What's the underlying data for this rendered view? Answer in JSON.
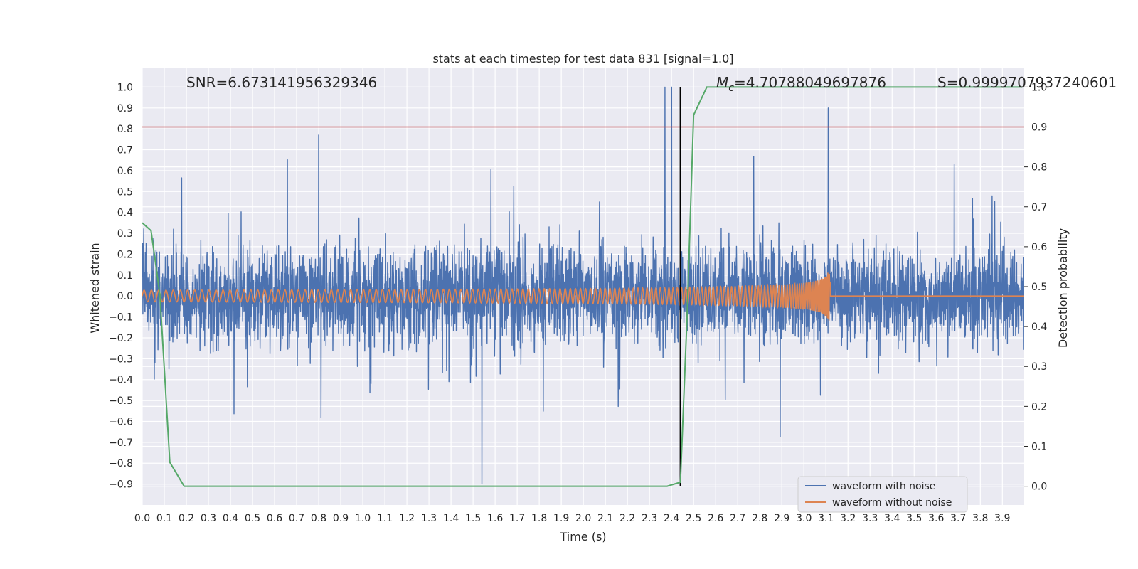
{
  "chart_data": {
    "type": "line",
    "title": "stats at each timestep for test data 831 [signal=1.0]",
    "xlabel": "Time (s)",
    "ylabel": "Whitened strain",
    "y2label": "Detection probability",
    "xlim": [
      0.0,
      3.999
    ],
    "ylim": [
      -1.0,
      1.09
    ],
    "y2lim": [
      -0.047,
      1.047
    ],
    "x_ticks": [
      "0.0",
      "0.1",
      "0.2",
      "0.3",
      "0.4",
      "0.5",
      "0.6",
      "0.7",
      "0.8",
      "0.9",
      "1.0",
      "1.1",
      "1.2",
      "1.3",
      "1.4",
      "1.5",
      "1.6",
      "1.7",
      "1.8",
      "1.9",
      "2.0",
      "2.1",
      "2.2",
      "2.3",
      "2.4",
      "2.5",
      "2.6",
      "2.7",
      "2.8",
      "2.9",
      "3.0",
      "3.1",
      "3.2",
      "3.3",
      "3.4",
      "3.5",
      "3.6",
      "3.7",
      "3.8",
      "3.9"
    ],
    "y_ticks": [
      "1.0",
      "0.9",
      "0.8",
      "0.7",
      "0.6",
      "0.5",
      "0.4",
      "0.3",
      "0.2",
      "0.1",
      "0.0",
      "−0.1",
      "−0.2",
      "−0.3",
      "−0.4",
      "−0.5",
      "−0.6",
      "−0.7",
      "−0.8",
      "−0.9"
    ],
    "y2_ticks": [
      "1.0",
      "0.9",
      "0.8",
      "0.7",
      "0.6",
      "0.5",
      "0.4",
      "0.3",
      "0.2",
      "0.1",
      "0.0"
    ],
    "grid": true,
    "legend_position": "lower-right",
    "annotations": {
      "snr": "SNR=6.673141956329346",
      "mc_symbol": "M",
      "mc_sub": "c",
      "mc_value": "=4.70788049697876",
      "s": "S=0.9999707937240601"
    },
    "threshold": {
      "axis": "y2",
      "value": 0.9,
      "color": "#c44e52"
    },
    "event_marker": {
      "x": 2.44,
      "color": "#000000"
    },
    "noise_seed": 831,
    "series": [
      {
        "name": "waveform with noise",
        "color": "#4c72b0",
        "axis": "y",
        "description": "whitened strain with noise, dense oscillation roughly between -0.9 and 1.0",
        "notable_peaks": [
          {
            "x": 0.8,
            "y": 0.77
          },
          {
            "x": 1.54,
            "y": -0.9
          },
          {
            "x": 2.37,
            "y": 1.0
          },
          {
            "x": 2.4,
            "y": 1.0
          },
          {
            "x": 3.11,
            "y": 0.9
          }
        ]
      },
      {
        "name": "waveform without noise",
        "color": "#dd8452",
        "axis": "y",
        "chirp_end_time": 3.12,
        "description": "chirp signal with amplitude about 0.03 growing to about 0.15 near 3.12 s, then flat at 0"
      },
      {
        "name": "detection probability",
        "color": "#55a868",
        "axis": "y2",
        "x": [
          0.0,
          0.04,
          0.08,
          0.125,
          0.19,
          0.3,
          1.0,
          2.0,
          2.38,
          2.44,
          2.47,
          2.5,
          2.56,
          3.0,
          3.99
        ],
        "values": [
          0.66,
          0.64,
          0.48,
          0.06,
          0.0,
          0.0,
          0.0,
          0.0,
          0.0,
          0.01,
          0.42,
          0.93,
          1.0,
          1.0,
          1.0
        ]
      }
    ]
  }
}
